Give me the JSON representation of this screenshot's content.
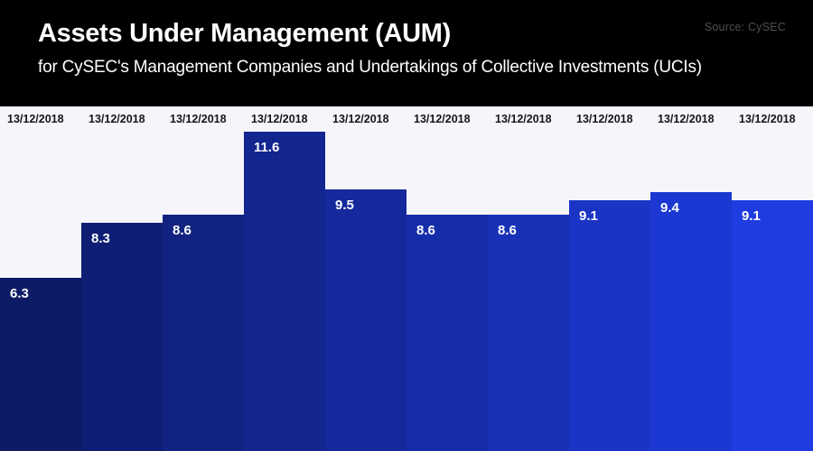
{
  "header": {
    "title": "Assets Under Management (AUM)",
    "subtitle": "for CySEC's Management Companies and Undertakings of Collective Investments (UCIs)",
    "source": "Source: CySEC"
  },
  "chart_data": {
    "type": "bar",
    "title": "Assets Under Management (AUM)",
    "subtitle": "for CySEC's Management Companies and Undertakings of Collective Investments (UCIs)",
    "source": "Source: CySEC",
    "categories": [
      "13/12/2018",
      "13/12/2018",
      "13/12/2018",
      "13/12/2018",
      "13/12/2018",
      "13/12/2018",
      "13/12/2018",
      "13/12/2018",
      "13/12/2018",
      "13/12/2018"
    ],
    "values": [
      6.3,
      8.3,
      8.6,
      11.6,
      9.5,
      8.6,
      8.6,
      9.1,
      9.4,
      9.1
    ],
    "ylim": [
      0,
      12.7
    ],
    "grid": false,
    "legend": false,
    "bar_colors": [
      "#0d1a66",
      "#0f1e74",
      "#112281",
      "#13258f",
      "#15299c",
      "#162daa",
      "#1831b7",
      "#1a34c5",
      "#1c38d2",
      "#1e3ce0"
    ],
    "background": "#f5f5fa",
    "date_label_color": "#15151e",
    "value_label_color": "#ffffff",
    "header_bg": "#000000",
    "source_color": "#4f4f4f"
  }
}
